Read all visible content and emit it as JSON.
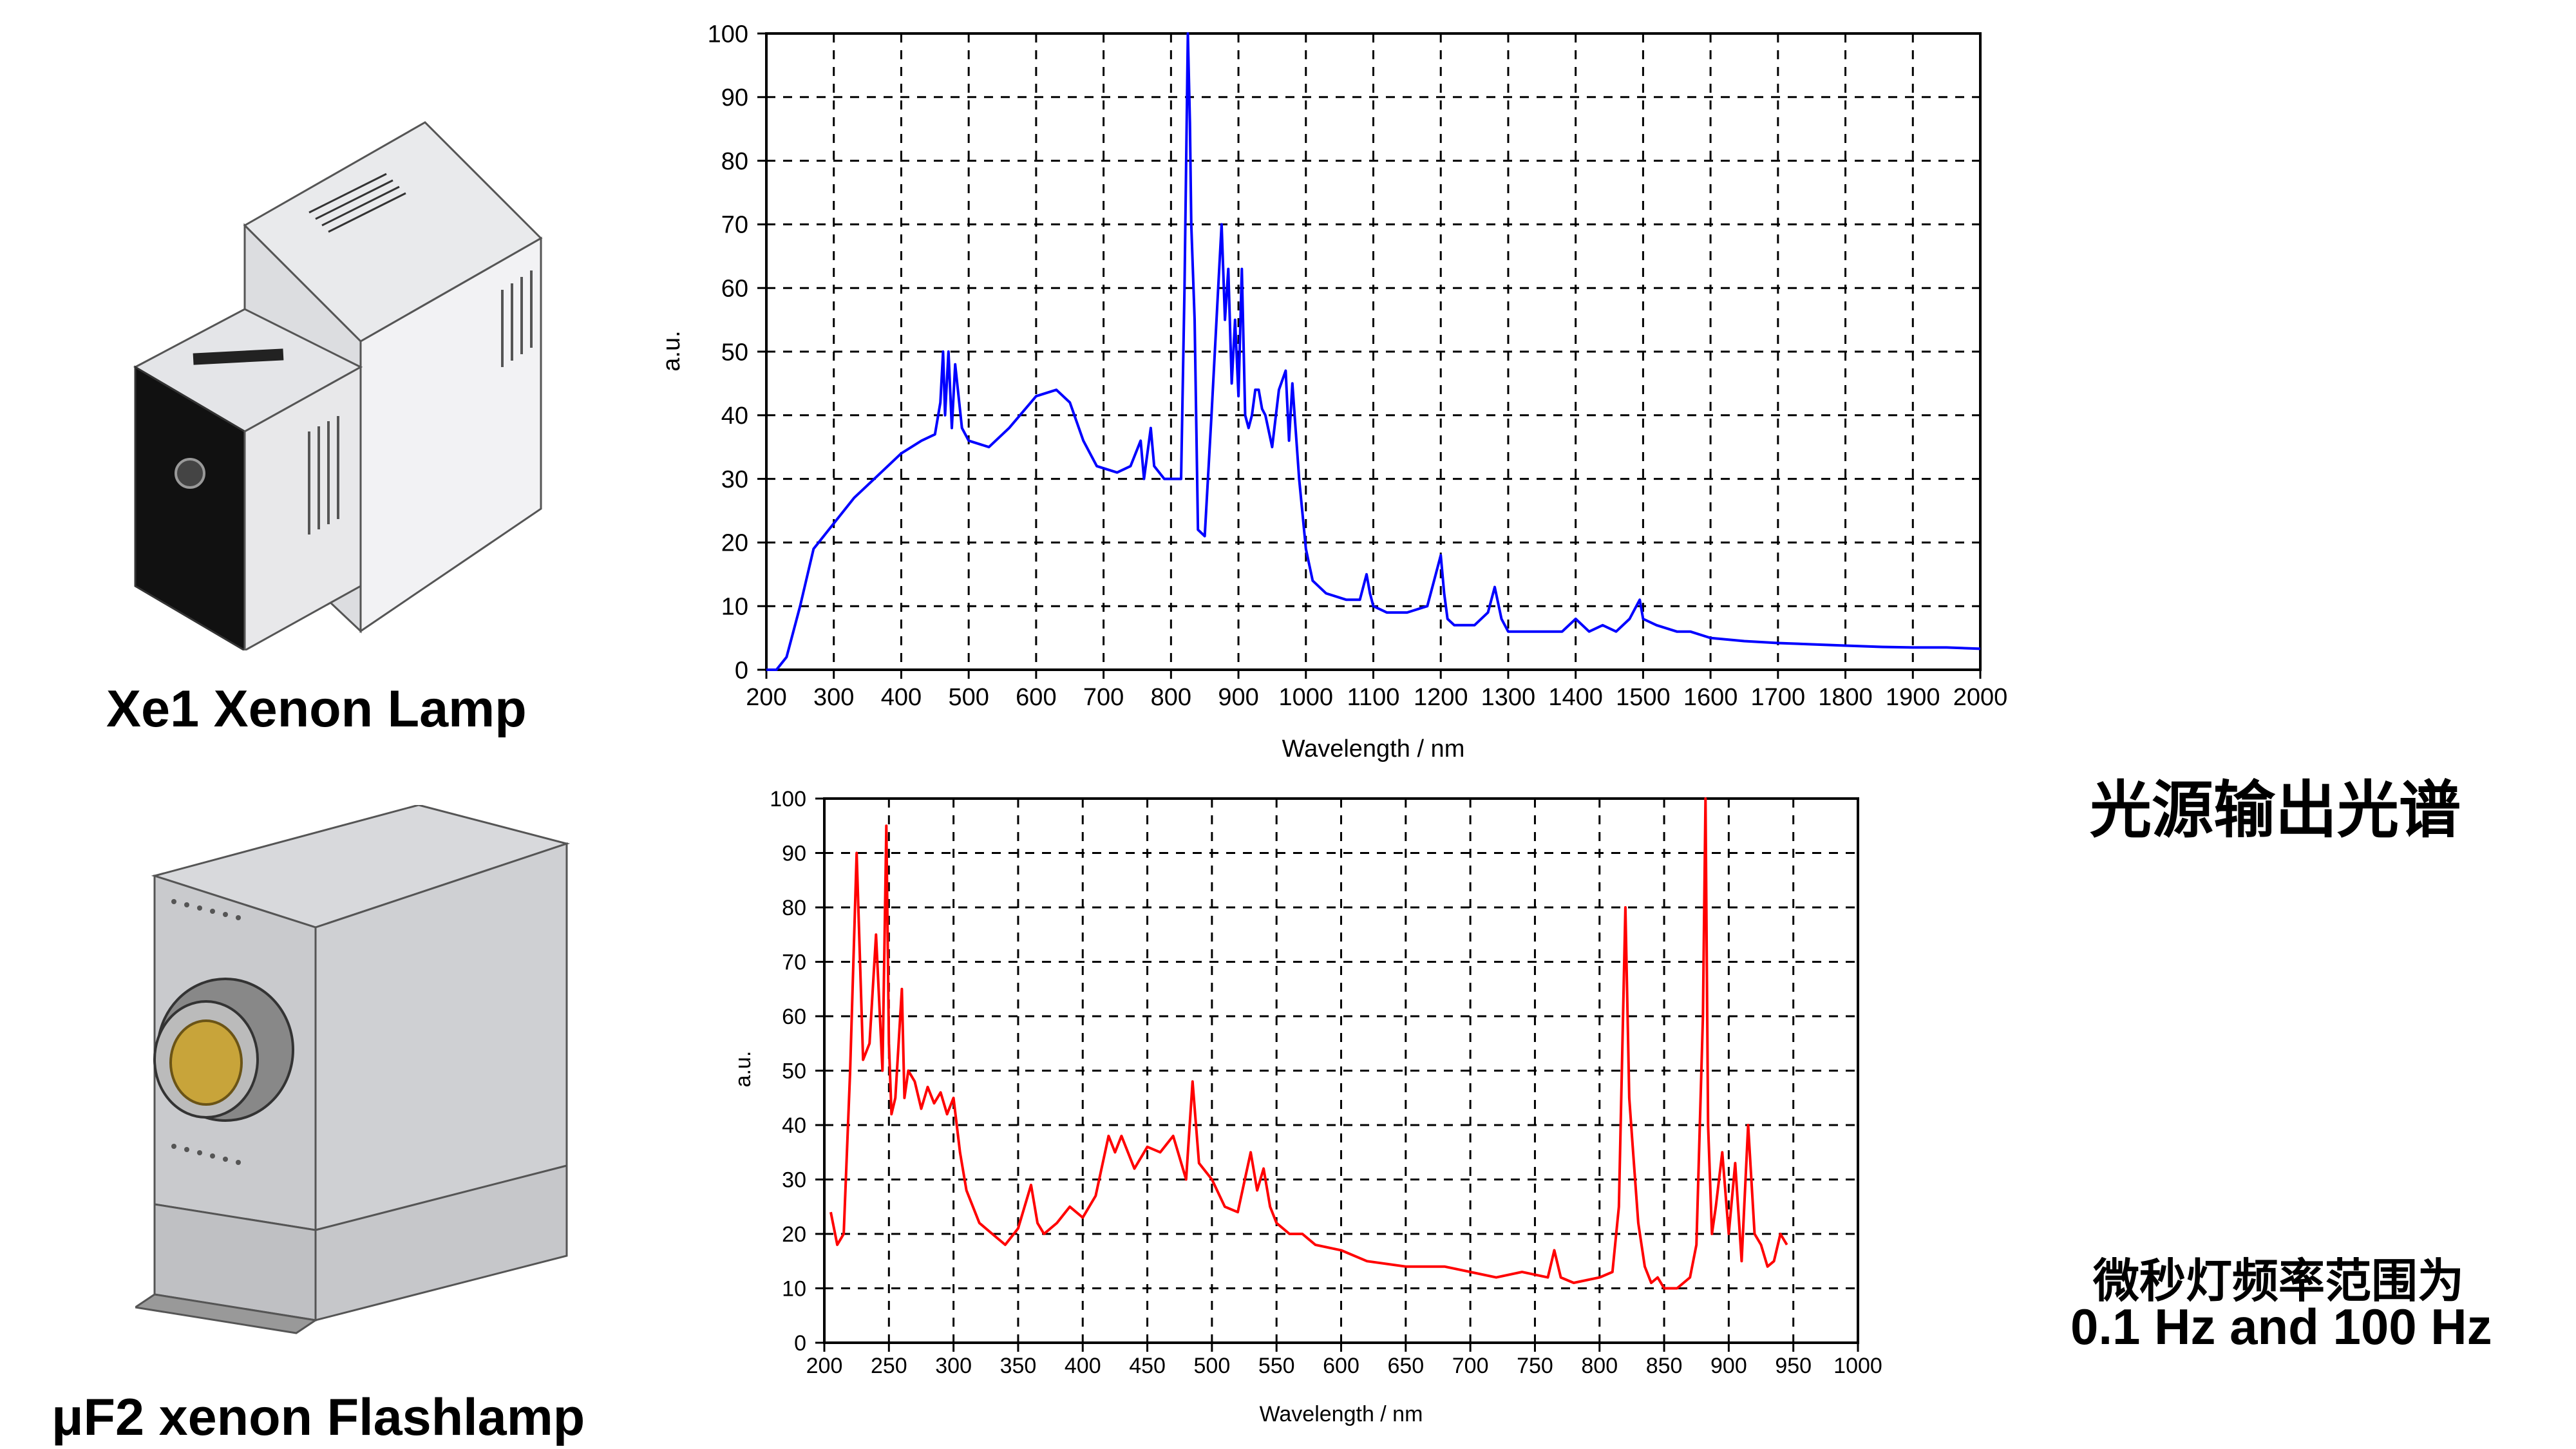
{
  "labels": {
    "xe1_lamp": "Xe1 Xenon Lamp",
    "uf2_flashlamp": "μF2 xenon Flashlamp",
    "spectrum_title": "光源输出光谱",
    "freq_line1": "微秒灯频率范围为",
    "freq_line2": "0.1 Hz and 100 Hz"
  },
  "colors": {
    "xe1_series": "#0000ff",
    "uf2_series": "#ff0000",
    "grid": "#000000"
  },
  "chart_data": [
    {
      "type": "line",
      "xlabel": "Wavelength / nm",
      "ylabel": "a.u.",
      "xlim": [
        200,
        2000
      ],
      "ylim": [
        0,
        100
      ],
      "xticks": [
        200,
        300,
        400,
        500,
        600,
        700,
        800,
        900,
        1000,
        1100,
        1200,
        1300,
        1400,
        1500,
        1600,
        1700,
        1800,
        1900,
        2000
      ],
      "yticks": [
        0,
        10,
        20,
        30,
        40,
        50,
        60,
        70,
        80,
        90,
        100
      ],
      "grid": true,
      "series": [
        {
          "color": "#0000ff",
          "x": [
            200,
            215,
            230,
            250,
            270,
            300,
            330,
            360,
            400,
            430,
            450,
            458,
            462,
            465,
            470,
            475,
            480,
            490,
            500,
            530,
            560,
            600,
            630,
            650,
            670,
            690,
            720,
            740,
            755,
            760,
            770,
            775,
            790,
            810,
            815,
            820,
            825,
            828,
            830,
            835,
            840,
            850,
            860,
            870,
            875,
            880,
            885,
            890,
            895,
            900,
            905,
            910,
            915,
            920,
            925,
            930,
            935,
            940,
            950,
            960,
            970,
            975,
            980,
            990,
            1000,
            1010,
            1030,
            1060,
            1080,
            1090,
            1095,
            1100,
            1120,
            1150,
            1180,
            1190,
            1200,
            1205,
            1210,
            1220,
            1250,
            1270,
            1280,
            1290,
            1300,
            1330,
            1360,
            1380,
            1400,
            1420,
            1440,
            1460,
            1480,
            1490,
            1495,
            1500,
            1520,
            1550,
            1570,
            1600,
            1650,
            1700,
            1750,
            1800,
            1850,
            1900,
            1950,
            2000
          ],
          "y": [
            0,
            0,
            2,
            10,
            19,
            23,
            27,
            30,
            34,
            36,
            37,
            42,
            50,
            40,
            50,
            38,
            48,
            38,
            36,
            35,
            38,
            43,
            44,
            42,
            36,
            32,
            31,
            32,
            36,
            30,
            38,
            32,
            30,
            30,
            30,
            60,
            100,
            86,
            70,
            55,
            22,
            21,
            40,
            60,
            70,
            55,
            63,
            45,
            55,
            43,
            63,
            40,
            38,
            40,
            44,
            44,
            41,
            40,
            35,
            44,
            47,
            36,
            45,
            30,
            19,
            14,
            12,
            11,
            11,
            15,
            12,
            10,
            9,
            9,
            10,
            14,
            18,
            12,
            8,
            7,
            7,
            9,
            13,
            8,
            6,
            6,
            6,
            6,
            8,
            6,
            7,
            6,
            8,
            10,
            11,
            8,
            7,
            6,
            6,
            5,
            4.5,
            4.2,
            4,
            3.8,
            3.6,
            3.5,
            3.5,
            3.3
          ]
        }
      ]
    },
    {
      "type": "line",
      "xlabel": "Wavelength / nm",
      "ylabel": "a.u.",
      "xlim": [
        200,
        1000
      ],
      "ylim": [
        0,
        100
      ],
      "xticks": [
        200,
        250,
        300,
        350,
        400,
        450,
        500,
        550,
        600,
        650,
        700,
        750,
        800,
        850,
        900,
        950,
        1000
      ],
      "yticks": [
        0,
        10,
        20,
        30,
        40,
        50,
        60,
        70,
        80,
        90,
        100
      ],
      "grid": true,
      "series": [
        {
          "color": "#ff0000",
          "x": [
            205,
            210,
            215,
            220,
            225,
            230,
            235,
            240,
            245,
            248,
            250,
            252,
            255,
            260,
            262,
            265,
            270,
            275,
            280,
            285,
            290,
            295,
            300,
            305,
            310,
            320,
            330,
            340,
            350,
            360,
            365,
            370,
            380,
            390,
            400,
            410,
            420,
            425,
            430,
            440,
            450,
            460,
            470,
            480,
            485,
            490,
            500,
            510,
            520,
            530,
            535,
            540,
            545,
            550,
            560,
            570,
            580,
            600,
            620,
            650,
            680,
            700,
            720,
            740,
            760,
            765,
            770,
            780,
            800,
            810,
            815,
            820,
            823,
            826,
            830,
            835,
            840,
            845,
            850,
            860,
            870,
            875,
            880,
            882,
            884,
            887,
            890,
            895,
            900,
            905,
            910,
            915,
            920,
            925,
            930,
            935,
            940,
            945
          ],
          "y": [
            24,
            18,
            20,
            50,
            90,
            52,
            55,
            75,
            50,
            95,
            55,
            42,
            45,
            65,
            45,
            50,
            48,
            43,
            47,
            44,
            46,
            42,
            45,
            35,
            28,
            22,
            20,
            18,
            21,
            29,
            22,
            20,
            22,
            25,
            23,
            27,
            38,
            35,
            38,
            32,
            36,
            35,
            38,
            30,
            48,
            33,
            30,
            25,
            24,
            35,
            28,
            32,
            25,
            22,
            20,
            20,
            18,
            17,
            15,
            14,
            14,
            13,
            12,
            13,
            12,
            17,
            12,
            11,
            12,
            13,
            25,
            80,
            45,
            35,
            22,
            14,
            11,
            12,
            10,
            10,
            12,
            18,
            60,
            100,
            40,
            20,
            25,
            35,
            20,
            33,
            15,
            40,
            20,
            18,
            14,
            15,
            20,
            18
          ]
        }
      ]
    }
  ]
}
